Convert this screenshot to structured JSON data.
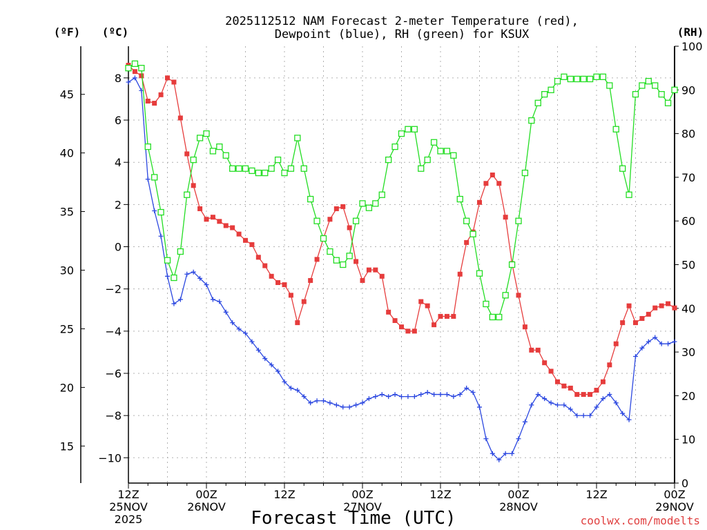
{
  "chart_data": {
    "type": "line",
    "title_line1": "2025112512 NAM Forecast 2-meter Temperature (red),",
    "title_line2": "Dewpoint (blue), RH (green) for KSUX",
    "xlabel": "Forecast Time (UTC)",
    "credit": "coolwx.com/modelts",
    "unit_labels": {
      "fahrenheit": "(ºF)",
      "celsius": "(ºC)",
      "rh": "(RH)"
    },
    "celsius_range": [
      -11.2,
      9.5
    ],
    "rh_range": [
      0,
      100
    ],
    "hour_range": [
      0,
      84
    ],
    "celsius_ticks": [
      "8",
      "6",
      "4",
      "2",
      "0",
      "−2",
      "−4",
      "−6",
      "−8",
      "−10"
    ],
    "celsius_tick_values": [
      8,
      6,
      4,
      2,
      0,
      -2,
      -4,
      -6,
      -8,
      -10
    ],
    "fahrenheit_ticks": [
      "45",
      "40",
      "35",
      "30",
      "25",
      "20",
      "15"
    ],
    "fahrenheit_tick_values": [
      45,
      40,
      35,
      30,
      25,
      20,
      15
    ],
    "rh_ticks": [
      "100",
      "90",
      "80",
      "70",
      "60",
      "50",
      "40",
      "30",
      "20",
      "10",
      "0"
    ],
    "rh_tick_values": [
      100,
      90,
      80,
      70,
      60,
      50,
      40,
      30,
      20,
      10,
      0
    ],
    "x_ticks": [
      {
        "hour": 0,
        "lines": [
          "12Z",
          "25NOV",
          "2025"
        ]
      },
      {
        "hour": 12,
        "lines": [
          "00Z",
          "26NOV"
        ]
      },
      {
        "hour": 24,
        "lines": [
          "12Z"
        ]
      },
      {
        "hour": 36,
        "lines": [
          "00Z",
          "27NOV"
        ]
      },
      {
        "hour": 48,
        "lines": [
          "12Z"
        ]
      },
      {
        "hour": 60,
        "lines": [
          "00Z",
          "28NOV"
        ]
      },
      {
        "hour": 72,
        "lines": [
          "12Z"
        ]
      },
      {
        "hour": 84,
        "lines": [
          "00Z",
          "29NOV"
        ]
      }
    ],
    "series": [
      {
        "name": "Temperature (°C)",
        "axis": "celsius",
        "color": "#e63c3c",
        "marker": "square-filled",
        "values": [
          8.6,
          8.3,
          8.1,
          6.9,
          6.8,
          7.2,
          8.0,
          7.8,
          6.1,
          4.4,
          2.9,
          1.8,
          1.3,
          1.4,
          1.2,
          1.0,
          0.9,
          0.6,
          0.3,
          0.1,
          -0.5,
          -0.9,
          -1.4,
          -1.7,
          -1.8,
          -2.3,
          -3.6,
          -2.6,
          -1.6,
          -0.6,
          0.4,
          1.3,
          1.8,
          1.9,
          0.9,
          -0.7,
          -1.6,
          -1.1,
          -1.1,
          -1.4,
          -3.1,
          -3.5,
          -3.8,
          -4.0,
          -4.0,
          -2.6,
          -2.8,
          -3.7,
          -3.3,
          -3.3,
          -3.3,
          -1.3,
          0.2,
          0.7,
          2.1,
          3.0,
          3.4,
          3.0,
          1.4,
          -0.8,
          -2.3,
          -3.8,
          -4.9,
          -4.9,
          -5.5,
          -5.9,
          -6.4,
          -6.6,
          -6.7,
          -7.0,
          -7.0,
          -7.0,
          -6.8,
          -6.4,
          -5.6,
          -4.6,
          -3.6,
          -2.8,
          -3.6,
          -3.4,
          -3.2,
          -2.9,
          -2.8,
          -2.7,
          -2.9
        ]
      },
      {
        "name": "Dewpoint (°C)",
        "axis": "celsius",
        "color": "#2b47e0",
        "marker": "plus",
        "values": [
          7.8,
          8.0,
          7.4,
          3.2,
          1.7,
          0.5,
          -1.4,
          -2.7,
          -2.5,
          -1.3,
          -1.2,
          -1.5,
          -1.8,
          -2.5,
          -2.6,
          -3.1,
          -3.6,
          -3.9,
          -4.1,
          -4.5,
          -4.9,
          -5.3,
          -5.6,
          -5.9,
          -6.4,
          -6.7,
          -6.8,
          -7.1,
          -7.4,
          -7.3,
          -7.3,
          -7.4,
          -7.5,
          -7.6,
          -7.6,
          -7.5,
          -7.4,
          -7.2,
          -7.1,
          -7.0,
          -7.1,
          -7.0,
          -7.1,
          -7.1,
          -7.1,
          -7.0,
          -6.9,
          -7.0,
          -7.0,
          -7.0,
          -7.1,
          -7.0,
          -6.7,
          -6.9,
          -7.6,
          -9.1,
          -9.8,
          -10.1,
          -9.8,
          -9.8,
          -9.1,
          -8.3,
          -7.5,
          -7.0,
          -7.2,
          -7.4,
          -7.5,
          -7.5,
          -7.7,
          -8.0,
          -8.0,
          -8.0,
          -7.6,
          -7.2,
          -7.0,
          -7.4,
          -7.9,
          -8.2,
          -5.2,
          -4.8,
          -4.5,
          -4.3,
          -4.6,
          -4.6,
          -4.5
        ]
      },
      {
        "name": "RH (%)",
        "axis": "rh",
        "color": "#22dd22",
        "marker": "square-open",
        "values": [
          95,
          96,
          95,
          77,
          70,
          62,
          51,
          47,
          53,
          66,
          74,
          79,
          80,
          76,
          77,
          75,
          72,
          72,
          72,
          71.5,
          71,
          71,
          72,
          74,
          71,
          72,
          79,
          72,
          65,
          60,
          56,
          53,
          51,
          50,
          52,
          60,
          64,
          63,
          64,
          66,
          74,
          77,
          80,
          81,
          81,
          72,
          74,
          78,
          76,
          76,
          75,
          65,
          60,
          57,
          48,
          41,
          38,
          38,
          43,
          50,
          60,
          71,
          83,
          87,
          89,
          90,
          92,
          93,
          92.5,
          92.5,
          92.5,
          92.5,
          93,
          93,
          91,
          81,
          72,
          66,
          89,
          91,
          92,
          91,
          89,
          87,
          90
        ]
      }
    ]
  }
}
